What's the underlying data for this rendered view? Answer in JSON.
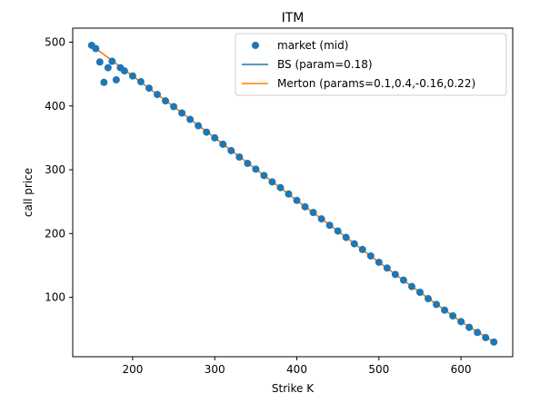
{
  "chart_data": {
    "type": "scatter",
    "title": "ITM",
    "xlabel": "Strike K",
    "ylabel": "call price",
    "xlim": [
      127,
      663
    ],
    "ylim": [
      7,
      522
    ],
    "x_ticks": [
      200,
      300,
      400,
      500,
      600
    ],
    "y_ticks": [
      100,
      200,
      300,
      400,
      500
    ],
    "grid": false,
    "legend_position": "top-right",
    "series": [
      {
        "name": "market (mid)",
        "kind": "scatter",
        "color": "#1f77b4",
        "points": [
          [
            150,
            495
          ],
          [
            155,
            490
          ],
          [
            160,
            469
          ],
          [
            165,
            437
          ],
          [
            170,
            460
          ],
          [
            175,
            470
          ],
          [
            180,
            441
          ],
          [
            185,
            460
          ],
          [
            190,
            455
          ],
          [
            200,
            447
          ],
          [
            210,
            438
          ],
          [
            220,
            428
          ],
          [
            230,
            418
          ],
          [
            240,
            408
          ],
          [
            250,
            399
          ],
          [
            260,
            389
          ],
          [
            270,
            379
          ],
          [
            280,
            369
          ],
          [
            290,
            359
          ],
          [
            300,
            350
          ],
          [
            310,
            340
          ],
          [
            320,
            330
          ],
          [
            330,
            320
          ],
          [
            340,
            310
          ],
          [
            350,
            301
          ],
          [
            360,
            291
          ],
          [
            370,
            281
          ],
          [
            380,
            272
          ],
          [
            390,
            262
          ],
          [
            400,
            252
          ],
          [
            410,
            242
          ],
          [
            420,
            233
          ],
          [
            430,
            223
          ],
          [
            440,
            213
          ],
          [
            450,
            204
          ],
          [
            460,
            194
          ],
          [
            470,
            184
          ],
          [
            480,
            175
          ],
          [
            490,
            165
          ],
          [
            500,
            155
          ],
          [
            510,
            146
          ],
          [
            520,
            136
          ],
          [
            530,
            127
          ],
          [
            540,
            117
          ],
          [
            550,
            108
          ],
          [
            560,
            98
          ],
          [
            570,
            89
          ],
          [
            580,
            80
          ],
          [
            590,
            71
          ],
          [
            600,
            62
          ],
          [
            610,
            53
          ],
          [
            620,
            45
          ],
          [
            630,
            37
          ],
          [
            640,
            30
          ]
        ]
      },
      {
        "name": "BS (param=0.18)",
        "kind": "line",
        "color": "#1f77b4",
        "points": [
          [
            150,
            495
          ],
          [
            200,
            447
          ],
          [
            250,
            399
          ],
          [
            300,
            350
          ],
          [
            350,
            301
          ],
          [
            400,
            252
          ],
          [
            450,
            204
          ],
          [
            500,
            155
          ],
          [
            550,
            108
          ],
          [
            600,
            62
          ],
          [
            640,
            30
          ]
        ]
      },
      {
        "name": "Merton (params=0.1,0.4,-0.16,0.22)",
        "kind": "line",
        "color": "#ff7f0e",
        "points": [
          [
            150,
            495
          ],
          [
            200,
            447
          ],
          [
            250,
            399
          ],
          [
            300,
            350
          ],
          [
            350,
            301
          ],
          [
            400,
            252
          ],
          [
            450,
            204
          ],
          [
            500,
            155
          ],
          [
            550,
            108
          ],
          [
            600,
            62
          ],
          [
            640,
            30
          ]
        ]
      }
    ]
  }
}
